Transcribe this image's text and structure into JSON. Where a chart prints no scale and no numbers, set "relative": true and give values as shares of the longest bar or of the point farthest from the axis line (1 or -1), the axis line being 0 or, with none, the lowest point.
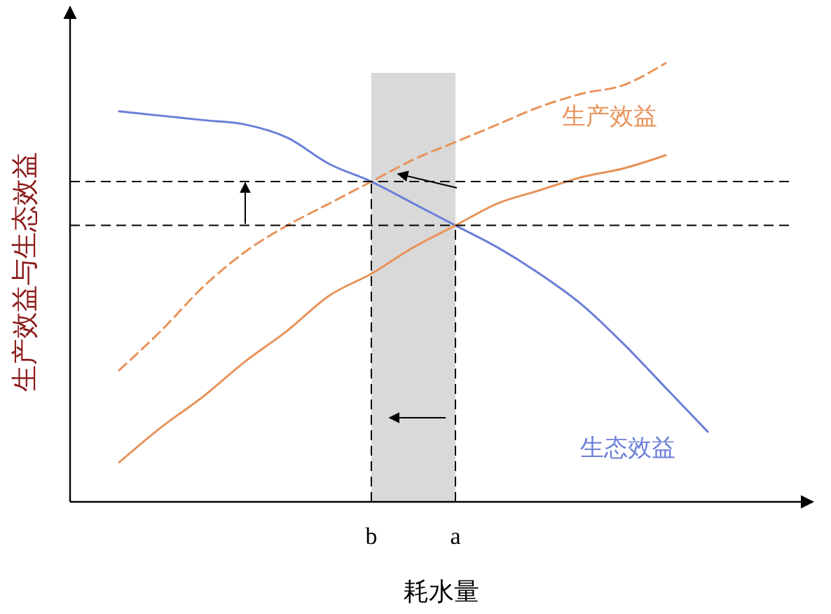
{
  "chart_data": {
    "type": "line",
    "relative": true,
    "xlabel": "耗水量",
    "ylabel": "生产效益与生态效益",
    "categories": [
      null,
      null,
      null,
      null,
      null,
      null,
      "b",
      null,
      "a",
      null,
      null,
      null,
      null,
      null,
      null
    ],
    "series": [
      {
        "name": "生态效益",
        "color": "#6b7fd8",
        "line_style": "solid",
        "values": [
          0.89,
          0.88,
          0.87,
          0.86,
          0.83,
          0.77,
          0.73,
          0.68,
          0.63,
          0.58,
          0.52,
          0.45,
          0.36,
          0.26,
          0.16
        ]
      },
      {
        "name": "生产效益",
        "color": "#e8935a",
        "line_style": "solid",
        "values": [
          0.09,
          0.17,
          0.24,
          0.32,
          0.39,
          0.47,
          0.52,
          0.58,
          0.63,
          0.68,
          0.71,
          0.74,
          0.76,
          0.79,
          null
        ]
      },
      {
        "color": "#e8935a",
        "line_style": "dashed",
        "values": [
          0.3,
          0.39,
          0.49,
          0.57,
          0.63,
          0.68,
          0.73,
          0.78,
          0.82,
          0.86,
          0.9,
          0.93,
          0.95,
          1.0,
          null
        ]
      }
    ],
    "bands": [
      {
        "axis": "x",
        "from": "b",
        "to": "a",
        "color": "#d9d9d9"
      }
    ],
    "ref_lines": [
      {
        "axis": "y",
        "value": 0.73,
        "line_style": "dashed"
      },
      {
        "axis": "y",
        "value": 0.63,
        "line_style": "dashed"
      },
      {
        "axis": "x",
        "value": "b",
        "line_style": "dashed"
      },
      {
        "axis": "x",
        "value": "a",
        "line_style": "dashed"
      }
    ],
    "marker": "none"
  }
}
